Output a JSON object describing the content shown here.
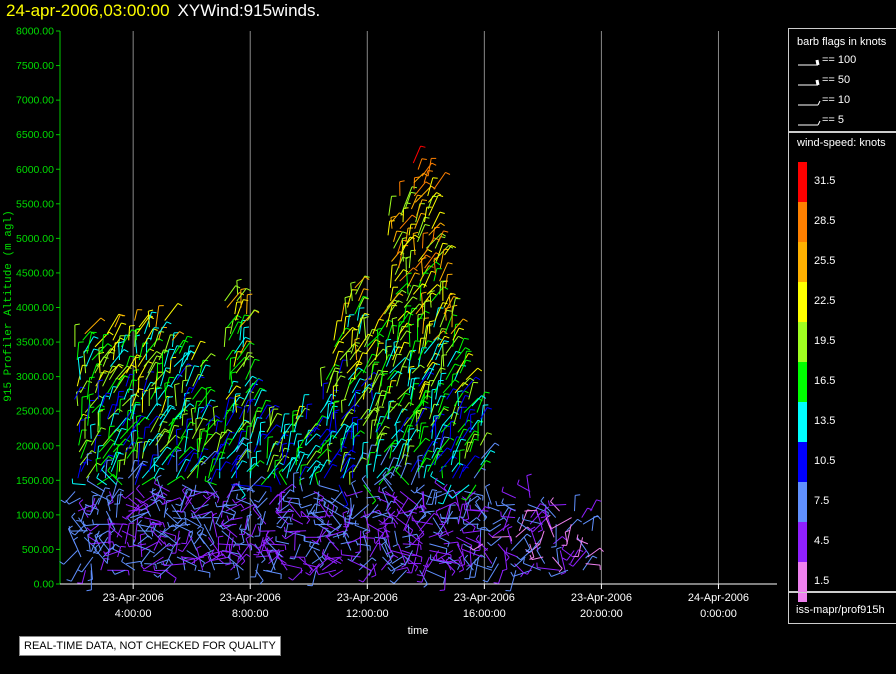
{
  "header": {
    "datetime": "24-apr-2006,03:00:00",
    "product": "XYWind:915winds."
  },
  "legend": {
    "barb_title": "barb flags in knots",
    "barbs": [
      "== 100",
      "== 50",
      "== 10",
      "== 5"
    ],
    "speed_title": "wind-speed: knots",
    "speed_bins": [
      {
        "label": "31.5",
        "color": "#ff0000"
      },
      {
        "label": "28.5",
        "color": "#ff8000"
      },
      {
        "label": "25.5",
        "color": "#ffb000"
      },
      {
        "label": "22.5",
        "color": "#ffff00"
      },
      {
        "label": "19.5",
        "color": "#a0ff20"
      },
      {
        "label": "16.5",
        "color": "#00ff00"
      },
      {
        "label": "13.5",
        "color": "#00ffff"
      },
      {
        "label": "10.5",
        "color": "#0000ff"
      },
      {
        "label": "7.5",
        "color": "#6090ff"
      },
      {
        "label": "4.5",
        "color": "#9020ff"
      },
      {
        "label": "1.5",
        "color": "#ee80ee"
      }
    ],
    "source": "iss-mapr/prof915h"
  },
  "note": "REAL-TIME DATA, NOT CHECKED FOR QUALITY",
  "chart_data": {
    "type": "scatter",
    "title": "24-apr-2006,03:00:00  XYWind:915winds.",
    "ylabel": "915 Profiler Altitude (m agl)",
    "xlabel": "time",
    "ylim": [
      0,
      8000
    ],
    "yticks": [
      "0.00",
      "500.00",
      "1000.00",
      "1500.00",
      "2000.00",
      "2500.00",
      "3000.00",
      "3500.00",
      "4000.00",
      "4500.00",
      "5000.00",
      "5500.00",
      "6000.00",
      "6500.00",
      "7000.00",
      "7500.00",
      "8000.00"
    ],
    "xlim_hours": [
      1.5,
      26
    ],
    "xticks": [
      {
        "hour": 4,
        "date": "23-Apr-2006",
        "time": "4:00:00"
      },
      {
        "hour": 8,
        "date": "23-Apr-2006",
        "time": "8:00:00"
      },
      {
        "hour": 12,
        "date": "23-Apr-2006",
        "time": "12:00:00"
      },
      {
        "hour": 16,
        "date": "23-Apr-2006",
        "time": "16:00:00"
      },
      {
        "hour": 20,
        "date": "23-Apr-2006",
        "time": "20:00:00"
      },
      {
        "hour": 24,
        "date": "24-Apr-2006",
        "time": "0:00:00"
      }
    ],
    "grid": "vertical",
    "profile_columns": [
      {
        "hour": 2.2,
        "top": 3700
      },
      {
        "hour": 2.6,
        "top": 3500
      },
      {
        "hour": 3.0,
        "top": 3400
      },
      {
        "hour": 3.3,
        "top": 3800
      },
      {
        "hour": 3.7,
        "top": 3600
      },
      {
        "hour": 4.1,
        "top": 3900
      },
      {
        "hour": 4.5,
        "top": 3800
      },
      {
        "hour": 4.9,
        "top": 3900
      },
      {
        "hour": 5.3,
        "top": 3600
      },
      {
        "hour": 5.7,
        "top": 3400
      },
      {
        "hour": 6.1,
        "top": 3300
      },
      {
        "hour": 6.5,
        "top": 2600
      },
      {
        "hour": 6.9,
        "top": 2400
      },
      {
        "hour": 7.3,
        "top": 4100
      },
      {
        "hour": 7.7,
        "top": 4200
      },
      {
        "hour": 8.1,
        "top": 2800
      },
      {
        "hour": 8.5,
        "top": 2500
      },
      {
        "hour": 8.9,
        "top": 2300
      },
      {
        "hour": 9.3,
        "top": 2300
      },
      {
        "hour": 9.7,
        "top": 2500
      },
      {
        "hour": 10.1,
        "top": 2400
      },
      {
        "hour": 10.5,
        "top": 3000
      },
      {
        "hour": 10.9,
        "top": 3600
      },
      {
        "hour": 11.3,
        "top": 4100
      },
      {
        "hour": 11.7,
        "top": 4300
      },
      {
        "hour": 12.1,
        "top": 3700
      },
      {
        "hour": 12.5,
        "top": 4000
      },
      {
        "hour": 12.9,
        "top": 5400
      },
      {
        "hour": 13.3,
        "top": 5700
      },
      {
        "hour": 13.7,
        "top": 6100
      },
      {
        "hour": 14.1,
        "top": 5900
      },
      {
        "hour": 14.5,
        "top": 5000
      },
      {
        "hour": 14.9,
        "top": 4000
      },
      {
        "hour": 15.3,
        "top": 3200
      },
      {
        "hour": 15.7,
        "top": 2600
      },
      {
        "hour": 16.1,
        "top": 1200
      },
      {
        "hour": 16.5,
        "top": 1100
      },
      {
        "hour": 17.0,
        "top": 1300
      },
      {
        "hour": 17.5,
        "top": 1400
      },
      {
        "hour": 18.0,
        "top": 1200
      },
      {
        "hour": 18.5,
        "top": 1100
      },
      {
        "hour": 19.0,
        "top": 1200
      },
      {
        "hour": 19.5,
        "top": 1100
      }
    ]
  }
}
